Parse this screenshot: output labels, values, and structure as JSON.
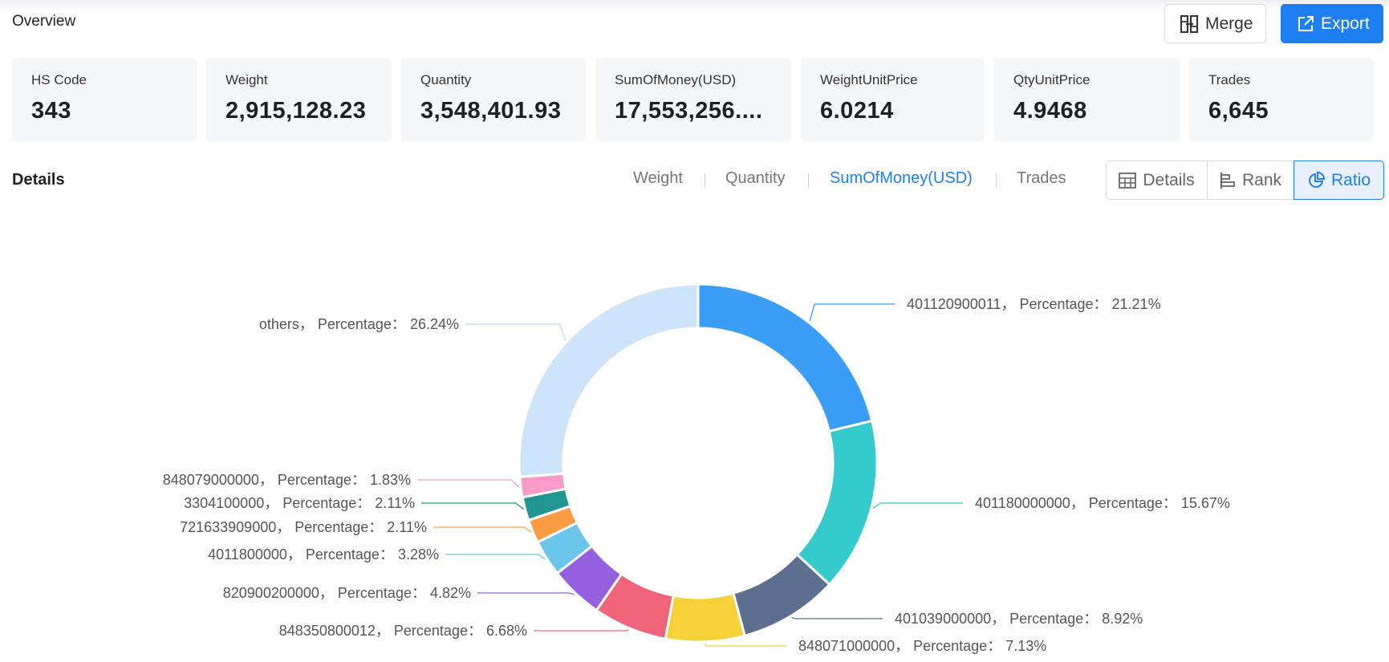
{
  "header": {
    "title": "Overview",
    "merge_label": "Merge",
    "export_label": "Export"
  },
  "stats": [
    {
      "label": "HS Code",
      "value": "343"
    },
    {
      "label": "Weight",
      "value": "2,915,128.23"
    },
    {
      "label": "Quantity",
      "value": "3,548,401.93"
    },
    {
      "label": "SumOfMoney(USD)",
      "value": "17,553,256...."
    },
    {
      "label": "WeightUnitPrice",
      "value": "6.0214"
    },
    {
      "label": "QtyUnitPrice",
      "value": "4.9468"
    },
    {
      "label": "Trades",
      "value": "6,645"
    }
  ],
  "details": {
    "title": "Details",
    "metric_tabs": [
      "Weight",
      "Quantity",
      "SumOfMoney(USD)",
      "Trades"
    ],
    "active_metric": "SumOfMoney(USD)",
    "view_buttons": [
      "Details",
      "Rank",
      "Ratio"
    ],
    "active_view": "Ratio"
  },
  "colors": {
    "accent": "#1e7ff0"
  },
  "chart_data": {
    "type": "pie",
    "variant": "donut",
    "series_prefix": "Percentage",
    "slices": [
      {
        "name": "401120900011",
        "value": 21.21,
        "label": "401120900011， Percentage： 21.21%",
        "color": "#3a9ef7"
      },
      {
        "name": "401180000000",
        "value": 15.67,
        "label": "401180000000， Percentage： 15.67%",
        "color": "#35cacb"
      },
      {
        "name": "401039000000",
        "value": 8.92,
        "label": "401039000000， Percentage： 8.92%",
        "color": "#5d6f8f"
      },
      {
        "name": "848071000000",
        "value": 7.13,
        "label": "848071000000， Percentage： 7.13%",
        "color": "#f7d138"
      },
      {
        "name": "848350800012",
        "value": 6.68,
        "label": "848350800012， Percentage： 6.68%",
        "color": "#f0647a"
      },
      {
        "name": "820900200000",
        "value": 4.82,
        "label": "820900200000， Percentage： 4.82%",
        "color": "#9560e0"
      },
      {
        "name": "4011800000",
        "value": 3.28,
        "label": "4011800000， Percentage： 3.28%",
        "color": "#6ac6ea"
      },
      {
        "name": "721633909000",
        "value": 2.11,
        "label": "721633909000， Percentage： 2.11%",
        "color": "#fb9c45"
      },
      {
        "name": "3304100000",
        "value": 2.11,
        "label": "3304100000， Percentage： 2.11%",
        "color": "#21958f"
      },
      {
        "name": "848079000000",
        "value": 1.83,
        "label": "848079000000， Percentage： 1.83%",
        "color": "#f99bc9"
      },
      {
        "name": "others",
        "value": 26.24,
        "label": "others， Percentage： 26.24%",
        "color": "#cde4fb"
      }
    ]
  }
}
